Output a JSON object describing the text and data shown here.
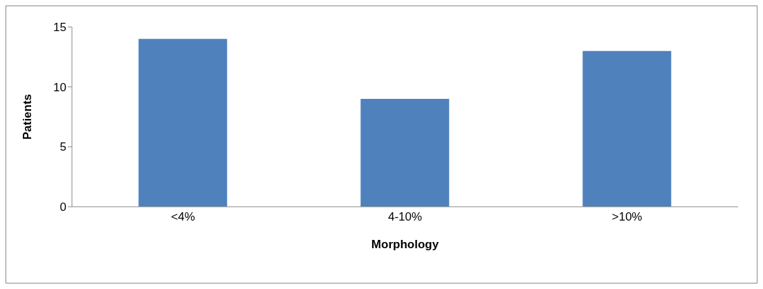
{
  "chart_data": {
    "type": "bar",
    "xlabel": "Morphology",
    "ylabel": "Patients",
    "categories": [
      "<4%",
      "4-10%",
      ">10%"
    ],
    "series": [
      {
        "color": "#4f81bd",
        "values": [
          14,
          9,
          13
        ]
      }
    ],
    "ylim": [
      0,
      15
    ],
    "yticks": [
      0,
      5,
      10,
      15
    ],
    "grid": false,
    "legend": false
  }
}
